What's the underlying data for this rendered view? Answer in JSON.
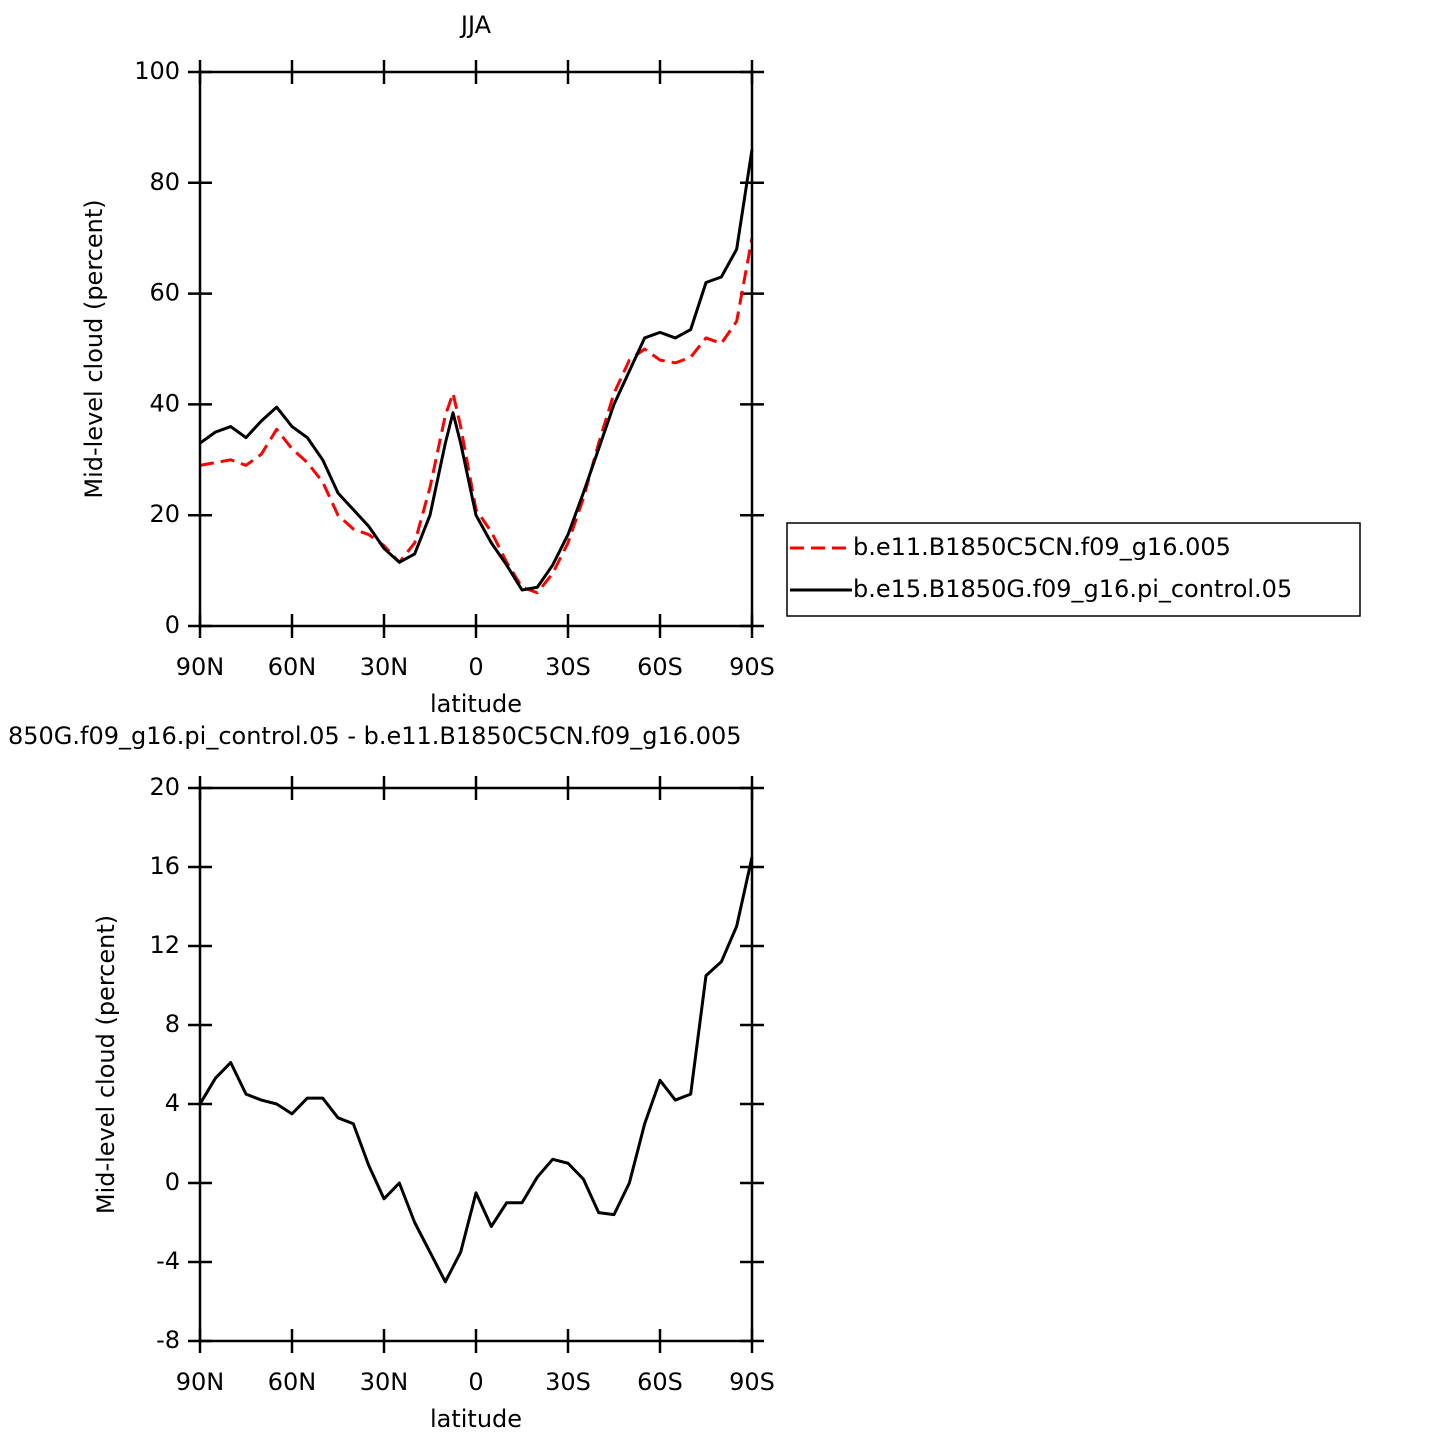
{
  "chart_data": [
    {
      "type": "line",
      "title": "JJA",
      "x_label": "latitude",
      "y_label": "Mid-level cloud (percent)",
      "x": [
        90,
        85,
        80,
        75,
        70,
        65,
        60,
        55,
        50,
        45,
        40,
        35,
        30,
        25,
        20,
        15,
        10,
        7.5,
        5,
        0,
        -5,
        -10,
        -15,
        -20,
        -25,
        -30,
        -35,
        -40,
        -45,
        -50,
        -55,
        -60,
        -65,
        -70,
        -75,
        -80,
        -85,
        -90
      ],
      "series": [
        {
          "name": "b.e11.B1850C5CN.f09_g16.005",
          "color": "#ff0000",
          "dashed": true,
          "values": [
            29,
            29.5,
            30,
            29,
            31,
            35.5,
            32,
            29.5,
            26,
            20,
            17.5,
            16.5,
            14.5,
            11.5,
            15,
            25,
            38,
            42,
            36,
            21,
            17,
            11.5,
            7,
            6,
            9.5,
            15,
            23,
            33,
            42,
            48,
            50,
            48,
            47.5,
            48.5,
            52,
            51,
            55,
            70
          ]
        },
        {
          "name": "b.e15.B1850G.f09_g16.pi_control.05",
          "color": "#000000",
          "dashed": false,
          "values": [
            33,
            35,
            36,
            34,
            37,
            39.5,
            36,
            34,
            30,
            24,
            21,
            18,
            14,
            11.5,
            13,
            20,
            33,
            38.5,
            33,
            20,
            15,
            11,
            6.5,
            7,
            11,
            16.5,
            24,
            32,
            40,
            46,
            52,
            53,
            52,
            53.5,
            62,
            63,
            68,
            86
          ]
        }
      ],
      "xlim": [
        90,
        -90
      ],
      "xticks": [
        {
          "value": 90,
          "label": "90N"
        },
        {
          "value": 60,
          "label": "60N"
        },
        {
          "value": 30,
          "label": "30N"
        },
        0,
        {
          "value": -30,
          "label": "30S"
        },
        {
          "value": -60,
          "label": "60S"
        },
        {
          "value": -90,
          "label": "90S"
        }
      ],
      "ylim": [
        0,
        100
      ],
      "yticks": [
        0,
        20,
        40,
        60,
        80,
        100
      ],
      "legend_position": "right"
    },
    {
      "type": "line",
      "title": "850G.f09_g16.pi_control.05 - b.e11.B1850C5CN.f09_g16.005",
      "x_label": "latitude",
      "y_label": "Mid-level cloud (percent)",
      "x": [
        90,
        85,
        80,
        75,
        70,
        65,
        60,
        55,
        50,
        45,
        40,
        35,
        30,
        25,
        20,
        15,
        10,
        5,
        0,
        -5,
        -10,
        -15,
        -20,
        -25,
        -30,
        -35,
        -40,
        -45,
        -50,
        -55,
        -60,
        -65,
        -70,
        -75,
        -80,
        -85,
        -90
      ],
      "values": [
        4,
        5.3,
        6.1,
        4.5,
        4.2,
        4.0,
        3.5,
        4.3,
        4.3,
        3.3,
        3.0,
        0.9,
        -0.8,
        0,
        -2,
        -3.5,
        -5,
        -3.5,
        -0.5,
        -2.2,
        -1,
        -1,
        0.3,
        1.2,
        1.0,
        0.2,
        -1.5,
        -1.6,
        0,
        3,
        5.2,
        4.2,
        4.5,
        10.5,
        11.2,
        13,
        16.5
      ],
      "color": "#000000",
      "xlim": [
        90,
        -90
      ],
      "xticks": [
        {
          "value": 90,
          "label": "90N"
        },
        {
          "value": 60,
          "label": "60N"
        },
        {
          "value": 30,
          "label": "30N"
        },
        0,
        {
          "value": -30,
          "label": "30S"
        },
        {
          "value": -60,
          "label": "60S"
        },
        {
          "value": -90,
          "label": "90S"
        }
      ],
      "ylim": [
        -8,
        20
      ],
      "yticks": [
        -8,
        -4,
        0,
        4,
        8,
        12,
        16,
        20
      ]
    }
  ]
}
